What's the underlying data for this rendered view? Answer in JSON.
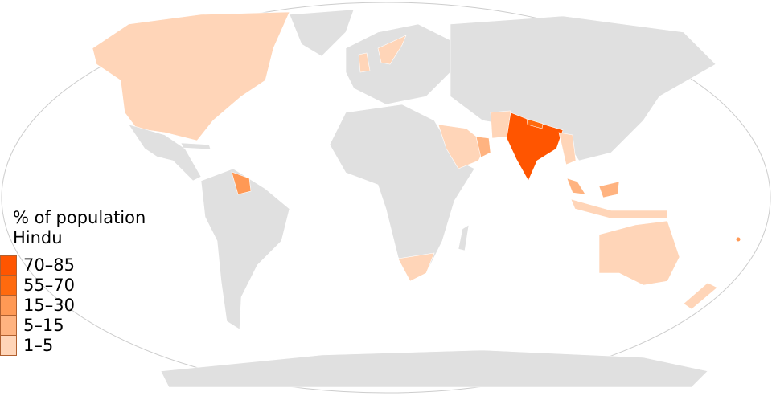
{
  "legend": {
    "title_line1": "% of population",
    "title_line2": "Hindu",
    "items": [
      {
        "label": "70–85",
        "color": "#ff5500"
      },
      {
        "label": "55–70",
        "color": "#ff6a0e"
      },
      {
        "label": "15–30",
        "color": "#ff9955"
      },
      {
        "label": "5–15",
        "color": "#ffb380"
      },
      {
        "label": "1–5",
        "color": "#ffd5b8"
      }
    ]
  },
  "colors": {
    "no_data": "#e0e0e0",
    "ocean": "#ffffff"
  }
}
